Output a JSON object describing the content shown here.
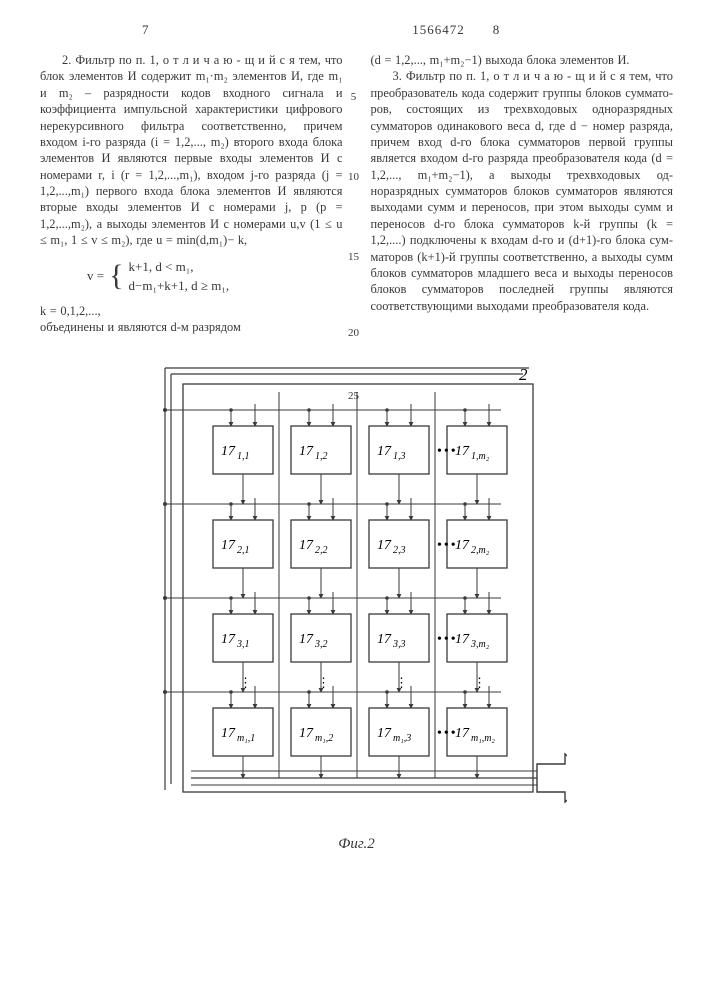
{
  "doc_number": "1566472",
  "page_left": "7",
  "page_right": "8",
  "left_column": {
    "p1": "2. Фильтр по п. 1, о т л и ч а ю - щ и й с я  тем, что блок элементов И содержит  m₁·m₂ элементов И, где m₁ и m₂ – разрядности кодов входного сигнала и коэффициента импульсной характеристики цифрового нерекурсив­ного фильтра соответственно, причем входом  i-го разряда  (i = 1,2,..., m₂)  второго входа блока элементов И являются первые входы элементов И с номерами r, i  (r = 1,2,...,m₁), вхо­дом j-го разряда  (j = 1,2,...,m₁) первого входа блока элементов И яв­ляются вторые входы элементов И с номерами  j, p  (p = 1,2,...,m₂),  а выходы элементов И с номерами u,v (1 ≤ u ≤ m₁,  1 ≤ v ≤ m₂), где u = min(d,m₁)− k,",
    "formula_v": "v =",
    "formula_case1": "k+1,  d < m₁,",
    "formula_case2": "d−m₁+k+1,  d ≥ m₁,",
    "p2": "k = 0,1,2,...,",
    "p3": "объединены и являются  d-м разрядом"
  },
  "right_column": {
    "p0": "(d = 1,2,..., m₁+m₂−1)  выхода блока элементов И.",
    "p1": "3. Фильтр по п. 1, о т л и ч а ю - щ и й с я  тем, что преобразователь кода содержит группы блоков суммато­ров, состоящих из трехвходовых одно­разрядных сумматоров одинакового ве­са d, где d − номер разряда, причем вход d-го блока сумматоров первой группы является входом d-го разряда преобразователя кода  (d = 1,2,..., m₁+m₂−1), а выходы трехвходовых од­норазрядных сумматоров блоков сумма­торов являются выходами сумм и пере­носов, при этом выходы сумм и пере­носов d-го блока сумматоров  k-й группы (k = 1,2,....) подключены к входам  d-го и  (d+1)-го блока сум­маторов (k+1)-й группы соответствен­но, а выходы сумм блоков сумматоров младшего веса и выходы переносов блоков сумматоров последней группы являются соответствующими выходами преобразователя кода."
  },
  "line_numbers": [
    "5",
    "10",
    "15",
    "20",
    "25"
  ],
  "figure": {
    "caption": "Фиг.2",
    "outer_label": "2",
    "stroke": "#3a3a3a",
    "fill": "#ffffff",
    "font": "italic 14px 'Times New Roman'",
    "grid": {
      "rows": 4,
      "cols": 4,
      "row_labels": [
        "1",
        "2",
        "3",
        "m₁"
      ],
      "col_labels": [
        "1",
        "2",
        "3",
        "m₂"
      ],
      "cell_prefix": "17"
    }
  }
}
